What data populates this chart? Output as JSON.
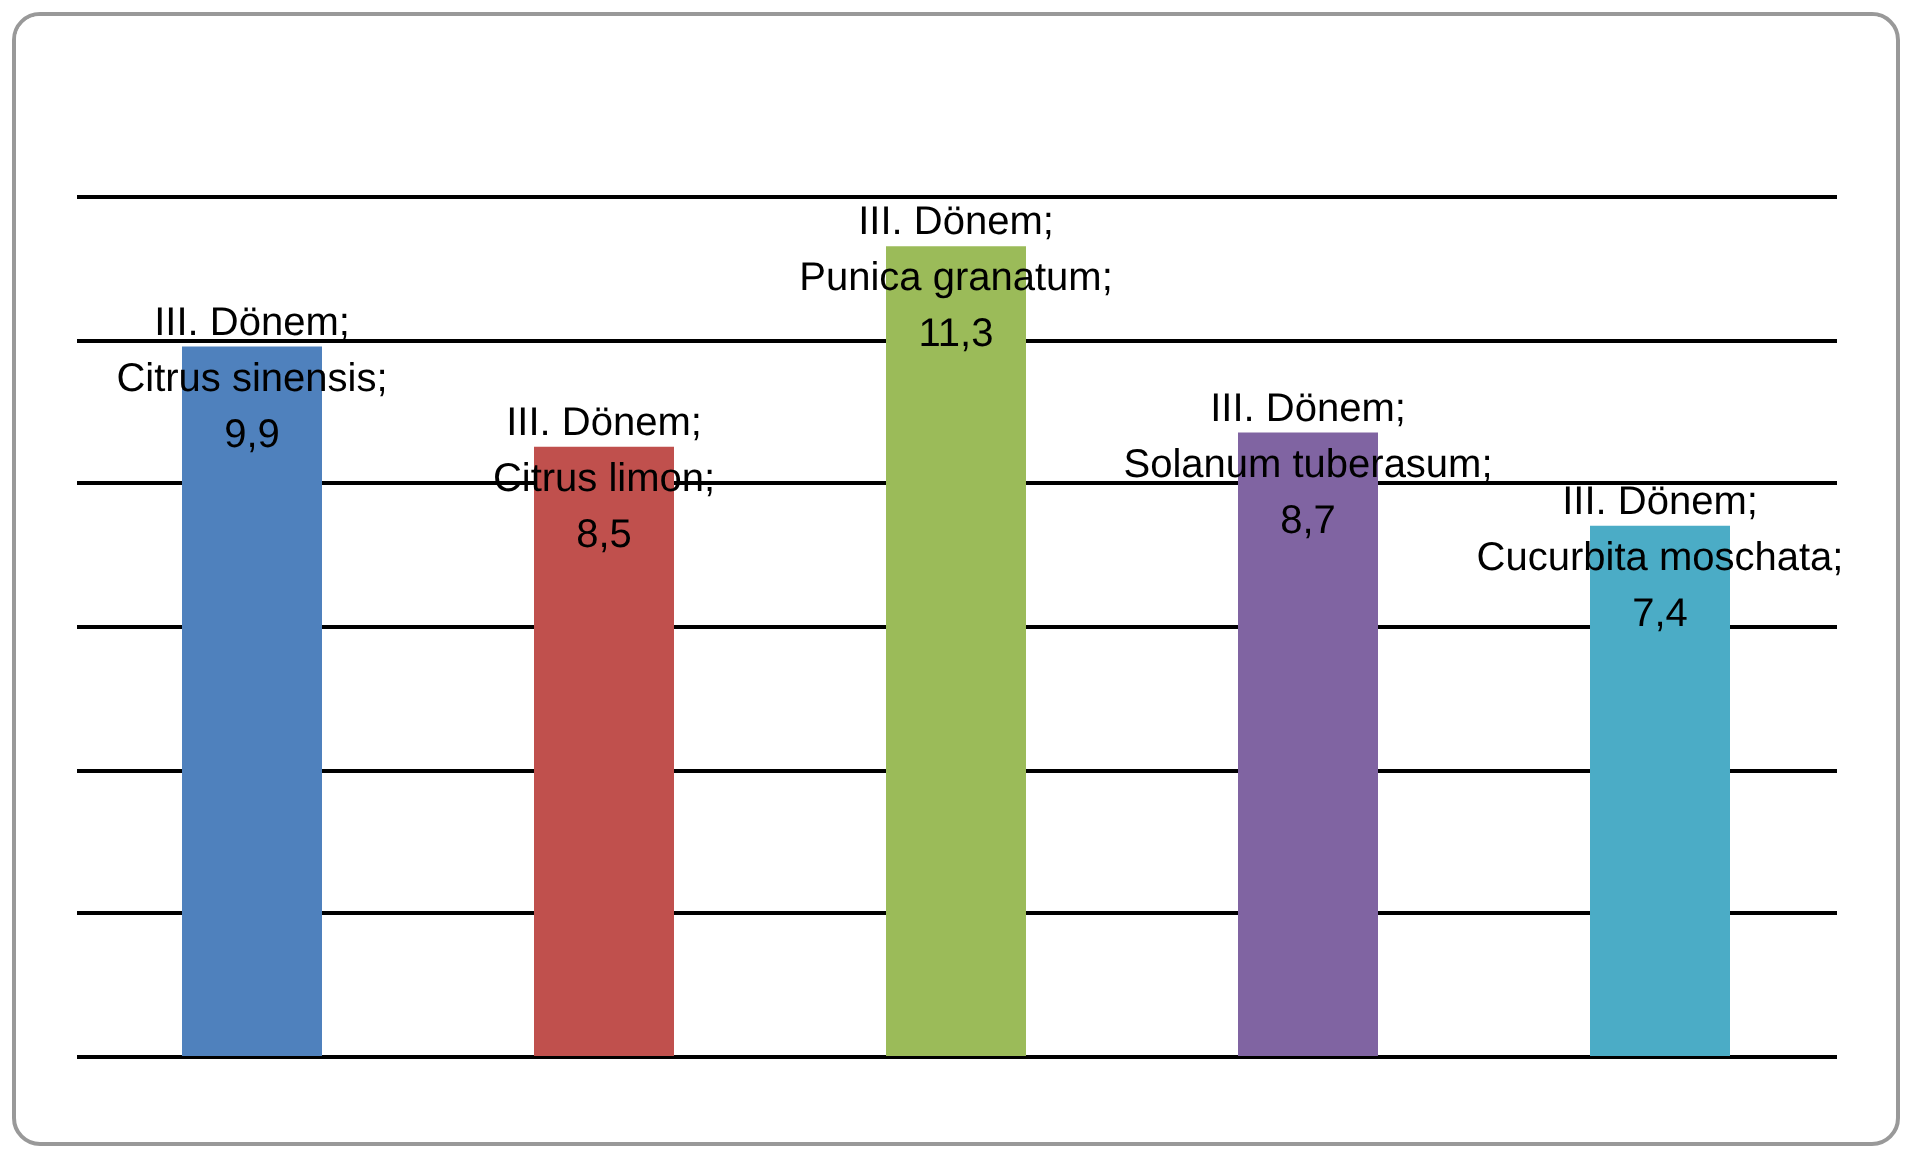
{
  "chart_data": {
    "type": "bar",
    "categories": [
      null,
      null,
      null,
      null,
      null
    ],
    "values": [
      9.9,
      8.5,
      11.3,
      8.7,
      7.4
    ],
    "colors": [
      "#4f81bd",
      "#c0504d",
      "#9bbb59",
      "#8064a2",
      "#4bacc6"
    ],
    "value_labels": [
      "III.  Dönem; Citrus sinensis; 9,9",
      "III.  Dönem; Citrus limon; 8,5",
      "III.  Dönem; Punica granatum; 11,3",
      "III.  Dönem; Solanum tuberasum; 8,7",
      "III.  Dönem; Cucurbita moschata; 7,4"
    ],
    "ylim": [
      0,
      12
    ],
    "yticks": [
      0,
      2,
      4,
      6,
      8,
      10,
      12
    ],
    "grid": "y",
    "tick_labels": false
  }
}
